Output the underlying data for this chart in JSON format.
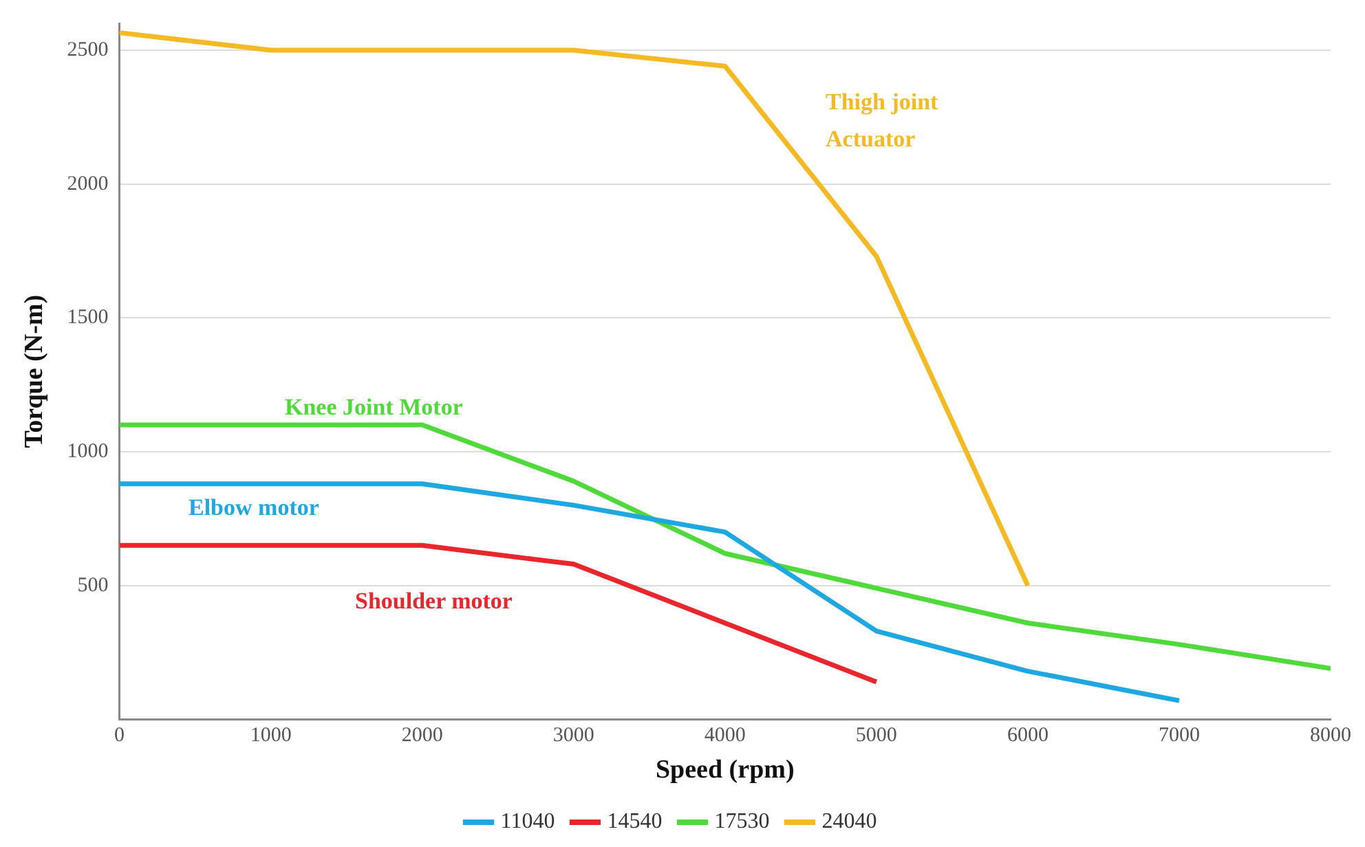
{
  "chart_data": {
    "type": "line",
    "xlabel": "Speed (rpm)",
    "ylabel": "Torque (N-m)",
    "xlim": [
      0,
      8000
    ],
    "xticks": [
      0,
      1000,
      2000,
      3000,
      4000,
      5000,
      6000,
      7000,
      8000
    ],
    "ylim": [
      0,
      2600
    ],
    "yticks": [
      500,
      1000,
      1500,
      2000,
      2500
    ],
    "grid": "y",
    "legend": "bottom",
    "marker": "none",
    "line_style": "solid",
    "series": [
      {
        "name": "11040",
        "color": "#1ea7e1",
        "x": [
          0,
          2000,
          3000,
          4000,
          5000,
          6000,
          7000
        ],
        "values": [
          880,
          880,
          800,
          700,
          330,
          180,
          70
        ]
      },
      {
        "name": "14540",
        "color": "#e8262b",
        "x": [
          0,
          2000,
          3000,
          4000,
          5000
        ],
        "values": [
          650,
          650,
          580,
          360,
          140
        ]
      },
      {
        "name": "17530",
        "color": "#4fd93a",
        "x": [
          0,
          2000,
          3000,
          4000,
          5000,
          6000,
          7000,
          8000
        ],
        "values": [
          1100,
          1100,
          890,
          620,
          490,
          360,
          280,
          190
        ]
      },
      {
        "name": "24040",
        "color": "#f4b923",
        "x": [
          0,
          1000,
          3000,
          4000,
          5000,
          6000
        ],
        "values": [
          2565,
          2500,
          2500,
          2440,
          1730,
          500
        ]
      }
    ],
    "annotations": [
      "Thigh joint",
      "Actuator",
      "Knee Joint Motor",
      "Elbow motor",
      "Shoulder motor"
    ]
  }
}
